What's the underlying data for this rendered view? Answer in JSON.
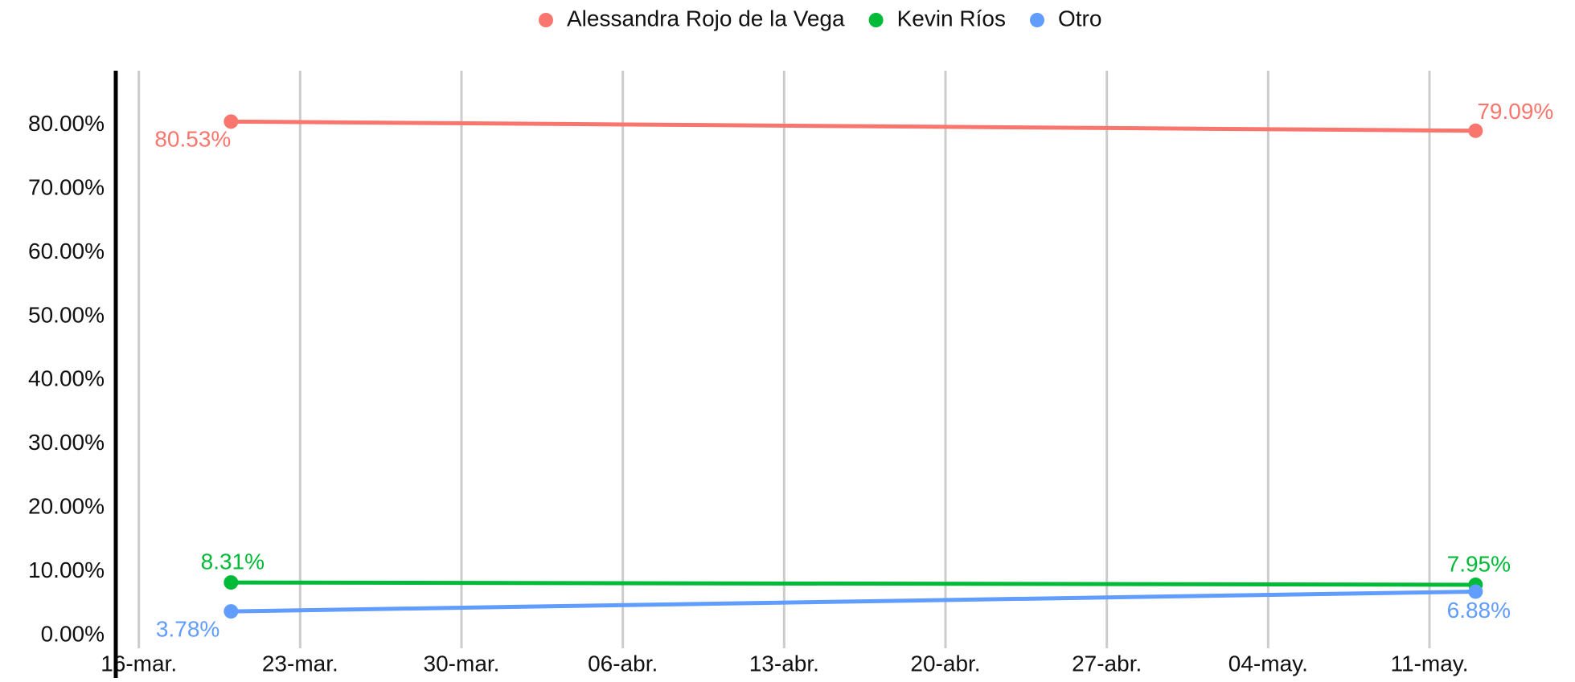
{
  "chart_data": {
    "type": "line",
    "x": [
      "20-mar.",
      "13-may."
    ],
    "series": [
      {
        "name": "Alessandra Rojo de la Vega",
        "color": "#f8766d",
        "values": [
          80.53,
          79.09
        ],
        "value_labels": [
          "80.53%",
          "79.09%"
        ]
      },
      {
        "name": "Kevin Ríos",
        "color": "#00ba38",
        "values": [
          8.31,
          7.95
        ],
        "value_labels": [
          "8.31%",
          "7.95%"
        ]
      },
      {
        "name": "Otro",
        "color": "#619cff",
        "values": [
          3.78,
          6.88
        ],
        "value_labels": [
          "3.78%",
          "6.88%"
        ]
      }
    ],
    "xlim": [
      "15-mar.",
      "17-may."
    ],
    "xticks": [
      "16-mar.",
      "23-mar.",
      "30-mar.",
      "06-abr.",
      "13-abr.",
      "20-abr.",
      "27-abr.",
      "04-may.",
      "11-may."
    ],
    "ylim": [
      -2,
      88.5
    ],
    "yticks": [
      {
        "value": 0,
        "label": "0.00%"
      },
      {
        "value": 10,
        "label": "10.00%"
      },
      {
        "value": 20,
        "label": "20.00%"
      },
      {
        "value": 30,
        "label": "30.00%"
      },
      {
        "value": 40,
        "label": "40.00%"
      },
      {
        "value": 50,
        "label": "50.00%"
      },
      {
        "value": 60,
        "label": "60.00%"
      },
      {
        "value": 70,
        "label": "70.00%"
      },
      {
        "value": 80,
        "label": "80.00%"
      }
    ],
    "grid": true,
    "legend": "top"
  }
}
